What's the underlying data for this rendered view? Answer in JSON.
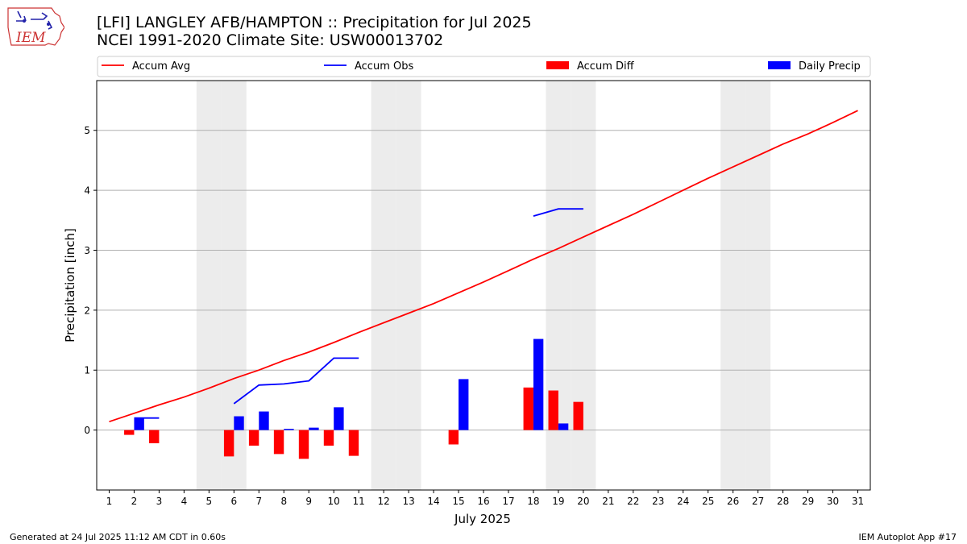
{
  "header": {
    "title_line1": "[LFI] LANGLEY AFB/HAMPTON :: Precipitation for Jul 2025",
    "title_line2": "NCEI 1991-2020 Climate Site: USW00013702",
    "logo_text": "IEM",
    "logo_icon": "iowa-state-map-logo"
  },
  "footer": {
    "left": "Generated at 24 Jul 2025 11:12 AM CDT in 0.60s",
    "right": "IEM Autoplot App #17"
  },
  "chart_data": {
    "type": "bar",
    "title": "[LFI] LANGLEY AFB/HAMPTON :: Precipitation for Jul 2025",
    "subtitle": "NCEI 1991-2020 Climate Site: USW00013702",
    "xlabel": "July 2025",
    "ylabel": "Precipitation [inch]",
    "xlim": [
      0.5,
      31.5
    ],
    "ylim": [
      -1.0,
      5.83
    ],
    "x_ticks": [
      1,
      2,
      3,
      4,
      5,
      6,
      7,
      8,
      9,
      10,
      11,
      12,
      13,
      14,
      15,
      16,
      17,
      18,
      19,
      20,
      21,
      22,
      23,
      24,
      25,
      26,
      27,
      28,
      29,
      30,
      31
    ],
    "y_ticks": [
      0,
      1,
      2,
      3,
      4,
      5
    ],
    "grid": "horizontal",
    "legend": {
      "position": "top",
      "entries": [
        "Accum Avg",
        "Accum Obs",
        "Accum Diff",
        "Daily Precip"
      ]
    },
    "weekend_shading_days": [
      5,
      6,
      12,
      13,
      19,
      20,
      26,
      27
    ],
    "colors": {
      "accum_avg": "#ff0000",
      "accum_obs": "#0000ff",
      "accum_diff": "#ff0000",
      "daily_precip": "#0000ff",
      "weekend": "#ececec",
      "grid": "#b0b0b0"
    },
    "series": [
      {
        "name": "Accum Avg",
        "kind": "line",
        "x": [
          1,
          2,
          3,
          4,
          5,
          6,
          7,
          8,
          9,
          10,
          11,
          12,
          13,
          14,
          15,
          16,
          17,
          18,
          19,
          20,
          21,
          22,
          23,
          24,
          25,
          26,
          27,
          28,
          29,
          30,
          31
        ],
        "values": [
          0.14,
          0.28,
          0.42,
          0.55,
          0.7,
          0.86,
          1.0,
          1.16,
          1.3,
          1.46,
          1.63,
          1.79,
          1.95,
          2.11,
          2.29,
          2.47,
          2.66,
          2.85,
          3.03,
          3.22,
          3.41,
          3.6,
          3.8,
          4.0,
          4.2,
          4.39,
          4.58,
          4.77,
          4.94,
          5.13,
          5.33
        ]
      },
      {
        "name": "Accum Obs",
        "kind": "line",
        "x": [
          2,
          3,
          4,
          5,
          6,
          7,
          8,
          9,
          10,
          11,
          12,
          13,
          14,
          15,
          16,
          17,
          18,
          19,
          20
        ],
        "values": [
          0.2,
          0.2,
          null,
          null,
          0.44,
          0.75,
          0.77,
          0.82,
          1.2,
          1.2,
          null,
          null,
          null,
          null,
          null,
          null,
          3.57,
          3.69,
          3.69
        ]
      },
      {
        "name": "Accum Diff",
        "kind": "bar",
        "x": [
          2,
          3,
          6,
          7,
          8,
          9,
          10,
          11,
          15,
          18,
          19,
          20
        ],
        "values": [
          -0.08,
          -0.22,
          -0.44,
          -0.26,
          -0.4,
          -0.48,
          -0.26,
          -0.43,
          -0.24,
          0.71,
          0.66,
          0.47
        ]
      },
      {
        "name": "Daily Precip",
        "kind": "bar",
        "x": [
          2,
          6,
          7,
          8,
          9,
          10,
          15,
          18,
          19
        ],
        "values": [
          0.2,
          0.23,
          0.31,
          0.02,
          0.04,
          0.38,
          0.85,
          1.52,
          0.11
        ]
      }
    ]
  }
}
